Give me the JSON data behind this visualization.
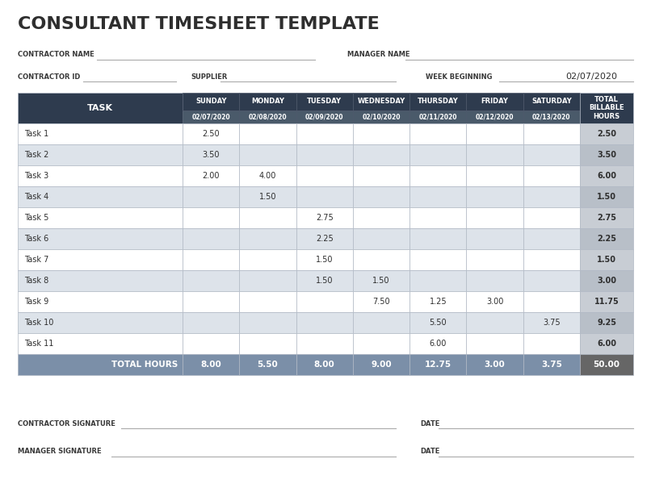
{
  "title": "CONSULTANT TIMESHEET TEMPLATE",
  "header_dark_color": "#2E3B4E",
  "header_date_color": "#4A5A6A",
  "alt_row_color": "#DDE3EA",
  "white_row_color": "#FFFFFF",
  "total_row_color": "#7B8FA8",
  "total_cell_color": "#666666",
  "total_col_white": "#C8CDD4",
  "total_col_alt": "#B8BFC8",
  "border_color": "#B0B8C4",
  "bg_color": "#FFFFFF",
  "text_dark": "#2E2E2E",
  "label_color": "#3A3A3A",
  "day_names": [
    "SUNDAY",
    "MONDAY",
    "TUESDAY",
    "WEDNESDAY",
    "THURSDAY",
    "FRIDAY",
    "SATURDAY"
  ],
  "dates": [
    "02/07/2020",
    "02/08/2020",
    "02/09/2020",
    "02/10/2020",
    "02/11/2020",
    "02/12/2020",
    "02/13/2020"
  ],
  "tasks": [
    {
      "name": "Task 1",
      "vals": [
        2.5,
        null,
        null,
        null,
        null,
        null,
        null
      ],
      "total": 2.5
    },
    {
      "name": "Task 2",
      "vals": [
        3.5,
        null,
        null,
        null,
        null,
        null,
        null
      ],
      "total": 3.5
    },
    {
      "name": "Task 3",
      "vals": [
        2.0,
        4.0,
        null,
        null,
        null,
        null,
        null
      ],
      "total": 6.0
    },
    {
      "name": "Task 4",
      "vals": [
        null,
        1.5,
        null,
        null,
        null,
        null,
        null
      ],
      "total": 1.5
    },
    {
      "name": "Task 5",
      "vals": [
        null,
        null,
        2.75,
        null,
        null,
        null,
        null
      ],
      "total": 2.75
    },
    {
      "name": "Task 6",
      "vals": [
        null,
        null,
        2.25,
        null,
        null,
        null,
        null
      ],
      "total": 2.25
    },
    {
      "name": "Task 7",
      "vals": [
        null,
        null,
        1.5,
        null,
        null,
        null,
        null
      ],
      "total": 1.5
    },
    {
      "name": "Task 8",
      "vals": [
        null,
        null,
        1.5,
        1.5,
        null,
        null,
        null
      ],
      "total": 3.0
    },
    {
      "name": "Task 9",
      "vals": [
        null,
        null,
        null,
        7.5,
        1.25,
        3.0,
        null
      ],
      "total": 11.75
    },
    {
      "name": "Task 10",
      "vals": [
        null,
        null,
        null,
        null,
        5.5,
        null,
        3.75
      ],
      "total": 9.25
    },
    {
      "name": "Task 11",
      "vals": [
        null,
        null,
        null,
        null,
        6.0,
        null,
        null
      ],
      "total": 6.0
    }
  ],
  "totals": [
    8.0,
    5.5,
    8.0,
    9.0,
    12.75,
    3.0,
    3.75
  ],
  "grand_total": 50.0
}
